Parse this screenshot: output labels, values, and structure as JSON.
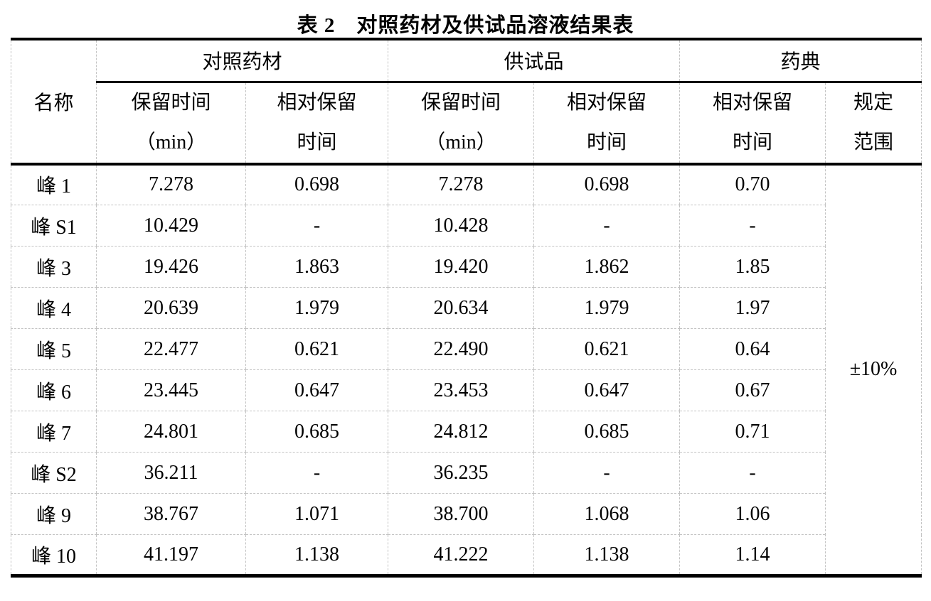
{
  "title": "表 2　对照药材及供试品溶液结果表",
  "table": {
    "name_header": "名称",
    "groups": [
      "对照药材",
      "供试品",
      "药典"
    ],
    "subheaders": [
      {
        "line1": "保留时间",
        "line2": "（min）"
      },
      {
        "line1": "相对保留",
        "line2": "时间"
      },
      {
        "line1": "保留时间",
        "line2": "（min）"
      },
      {
        "line1": "相对保留",
        "line2": "时间"
      },
      {
        "line1": "相对保留",
        "line2": "时间"
      },
      {
        "line1": "规定",
        "line2": "范围"
      }
    ],
    "rows": [
      {
        "name": "峰 1",
        "values": [
          "7.278",
          "0.698",
          "7.278",
          "0.698",
          "0.70"
        ]
      },
      {
        "name": "峰 S1",
        "values": [
          "10.429",
          "-",
          "10.428",
          "-",
          "-"
        ]
      },
      {
        "name": "峰 3",
        "values": [
          "19.426",
          "1.863",
          "19.420",
          "1.862",
          "1.85"
        ]
      },
      {
        "name": "峰 4",
        "values": [
          "20.639",
          "1.979",
          "20.634",
          "1.979",
          "1.97"
        ]
      },
      {
        "name": "峰 5",
        "values": [
          "22.477",
          "0.621",
          "22.490",
          "0.621",
          "0.64"
        ]
      },
      {
        "name": "峰 6",
        "values": [
          "23.445",
          "0.647",
          "23.453",
          "0.647",
          "0.67"
        ]
      },
      {
        "name": "峰 7",
        "values": [
          "24.801",
          "0.685",
          "24.812",
          "0.685",
          "0.71"
        ]
      },
      {
        "name": "峰 S2",
        "values": [
          "36.211",
          "-",
          "36.235",
          "-",
          "-"
        ]
      },
      {
        "name": "峰 9",
        "values": [
          "38.767",
          "1.071",
          "38.700",
          "1.068",
          "1.06"
        ]
      },
      {
        "name": "峰 10",
        "values": [
          "41.197",
          "1.138",
          "41.222",
          "1.138",
          "1.14"
        ]
      }
    ],
    "spec_range": "±10%",
    "colors": {
      "text": "#000000",
      "heavy_rule": "#000000",
      "light_rule": "#c3c3c3",
      "background": "#ffffff"
    }
  }
}
